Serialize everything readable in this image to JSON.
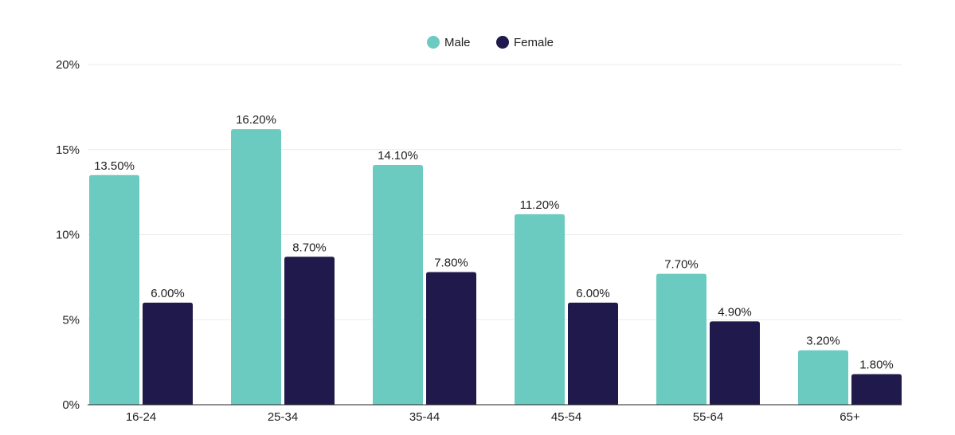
{
  "chart_data": {
    "type": "bar",
    "title": "",
    "xlabel": "",
    "ylabel": "",
    "categories": [
      "16-24",
      "25-34",
      "35-44",
      "45-54",
      "55-64",
      "65+"
    ],
    "series": [
      {
        "name": "Male",
        "color": "#6CCBC1",
        "values": [
          13.5,
          16.2,
          14.1,
          11.2,
          7.7,
          3.2
        ],
        "labels": [
          "13.50%",
          "16.20%",
          "14.10%",
          "11.20%",
          "7.70%",
          "3.20%"
        ]
      },
      {
        "name": "Female",
        "color": "#1F1A4B",
        "values": [
          6.0,
          8.7,
          7.8,
          6.0,
          4.9,
          1.8
        ],
        "labels": [
          "6.00%",
          "8.70%",
          "7.80%",
          "6.00%",
          "4.90%",
          "1.80%"
        ]
      }
    ],
    "ylim": [
      0,
      20
    ],
    "yticks": [
      0,
      5,
      10,
      15,
      20
    ],
    "ytick_labels": [
      "0%",
      "5%",
      "10%",
      "15%",
      "20%"
    ],
    "grid": true,
    "legend_position": "top-center"
  }
}
